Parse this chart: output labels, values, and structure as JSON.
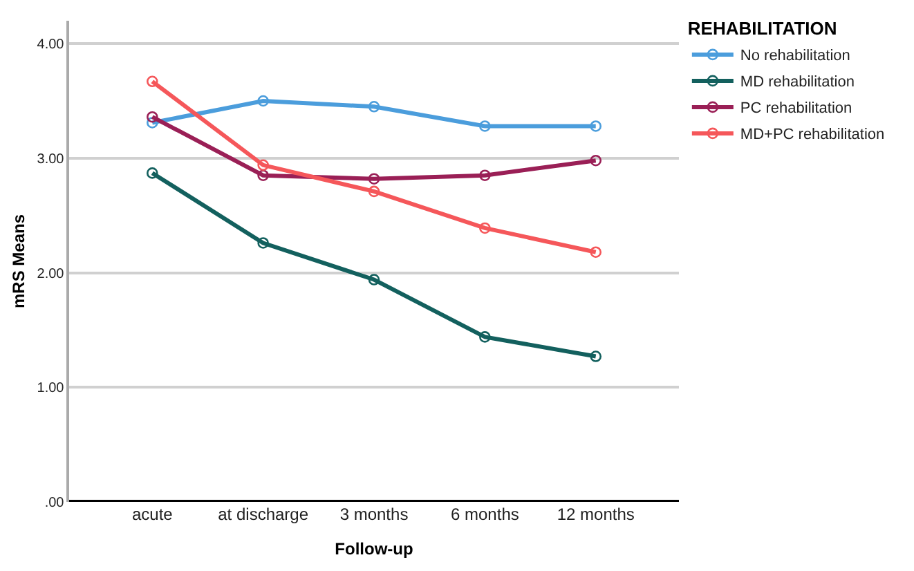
{
  "chart_data": {
    "type": "line",
    "xlabel": "Follow-up",
    "ylabel": "mRS Means",
    "legend_title": "REHABILITATION",
    "categories": [
      "acute",
      "at discharge",
      "3 months",
      "6 months",
      "12 months"
    ],
    "series": [
      {
        "name": "No rehabilitation",
        "color": "#4b9ddc",
        "values": [
          3.31,
          3.5,
          3.45,
          3.28,
          3.28
        ]
      },
      {
        "name": "MD rehabilitation",
        "color": "#13605e",
        "values": [
          2.87,
          2.26,
          1.94,
          1.44,
          1.27
        ]
      },
      {
        "name": "PC rehabilitation",
        "color": "#9a1f56",
        "values": [
          3.36,
          2.85,
          2.82,
          2.85,
          2.98
        ]
      },
      {
        "name": "MD+PC rehabilitation",
        "color": "#f5575a",
        "values": [
          3.67,
          2.94,
          2.71,
          2.39,
          2.18
        ]
      }
    ],
    "ylim": [
      0,
      4.2
    ],
    "yticks": [
      {
        "value": 0,
        "label": ".00"
      },
      {
        "value": 1,
        "label": "1.00"
      },
      {
        "value": 2,
        "label": "2.00"
      },
      {
        "value": 3,
        "label": "3.00"
      },
      {
        "value": 4,
        "label": "4.00"
      }
    ],
    "grid": "y",
    "legend": "top right",
    "marker": "circle",
    "line_style": "solid"
  }
}
